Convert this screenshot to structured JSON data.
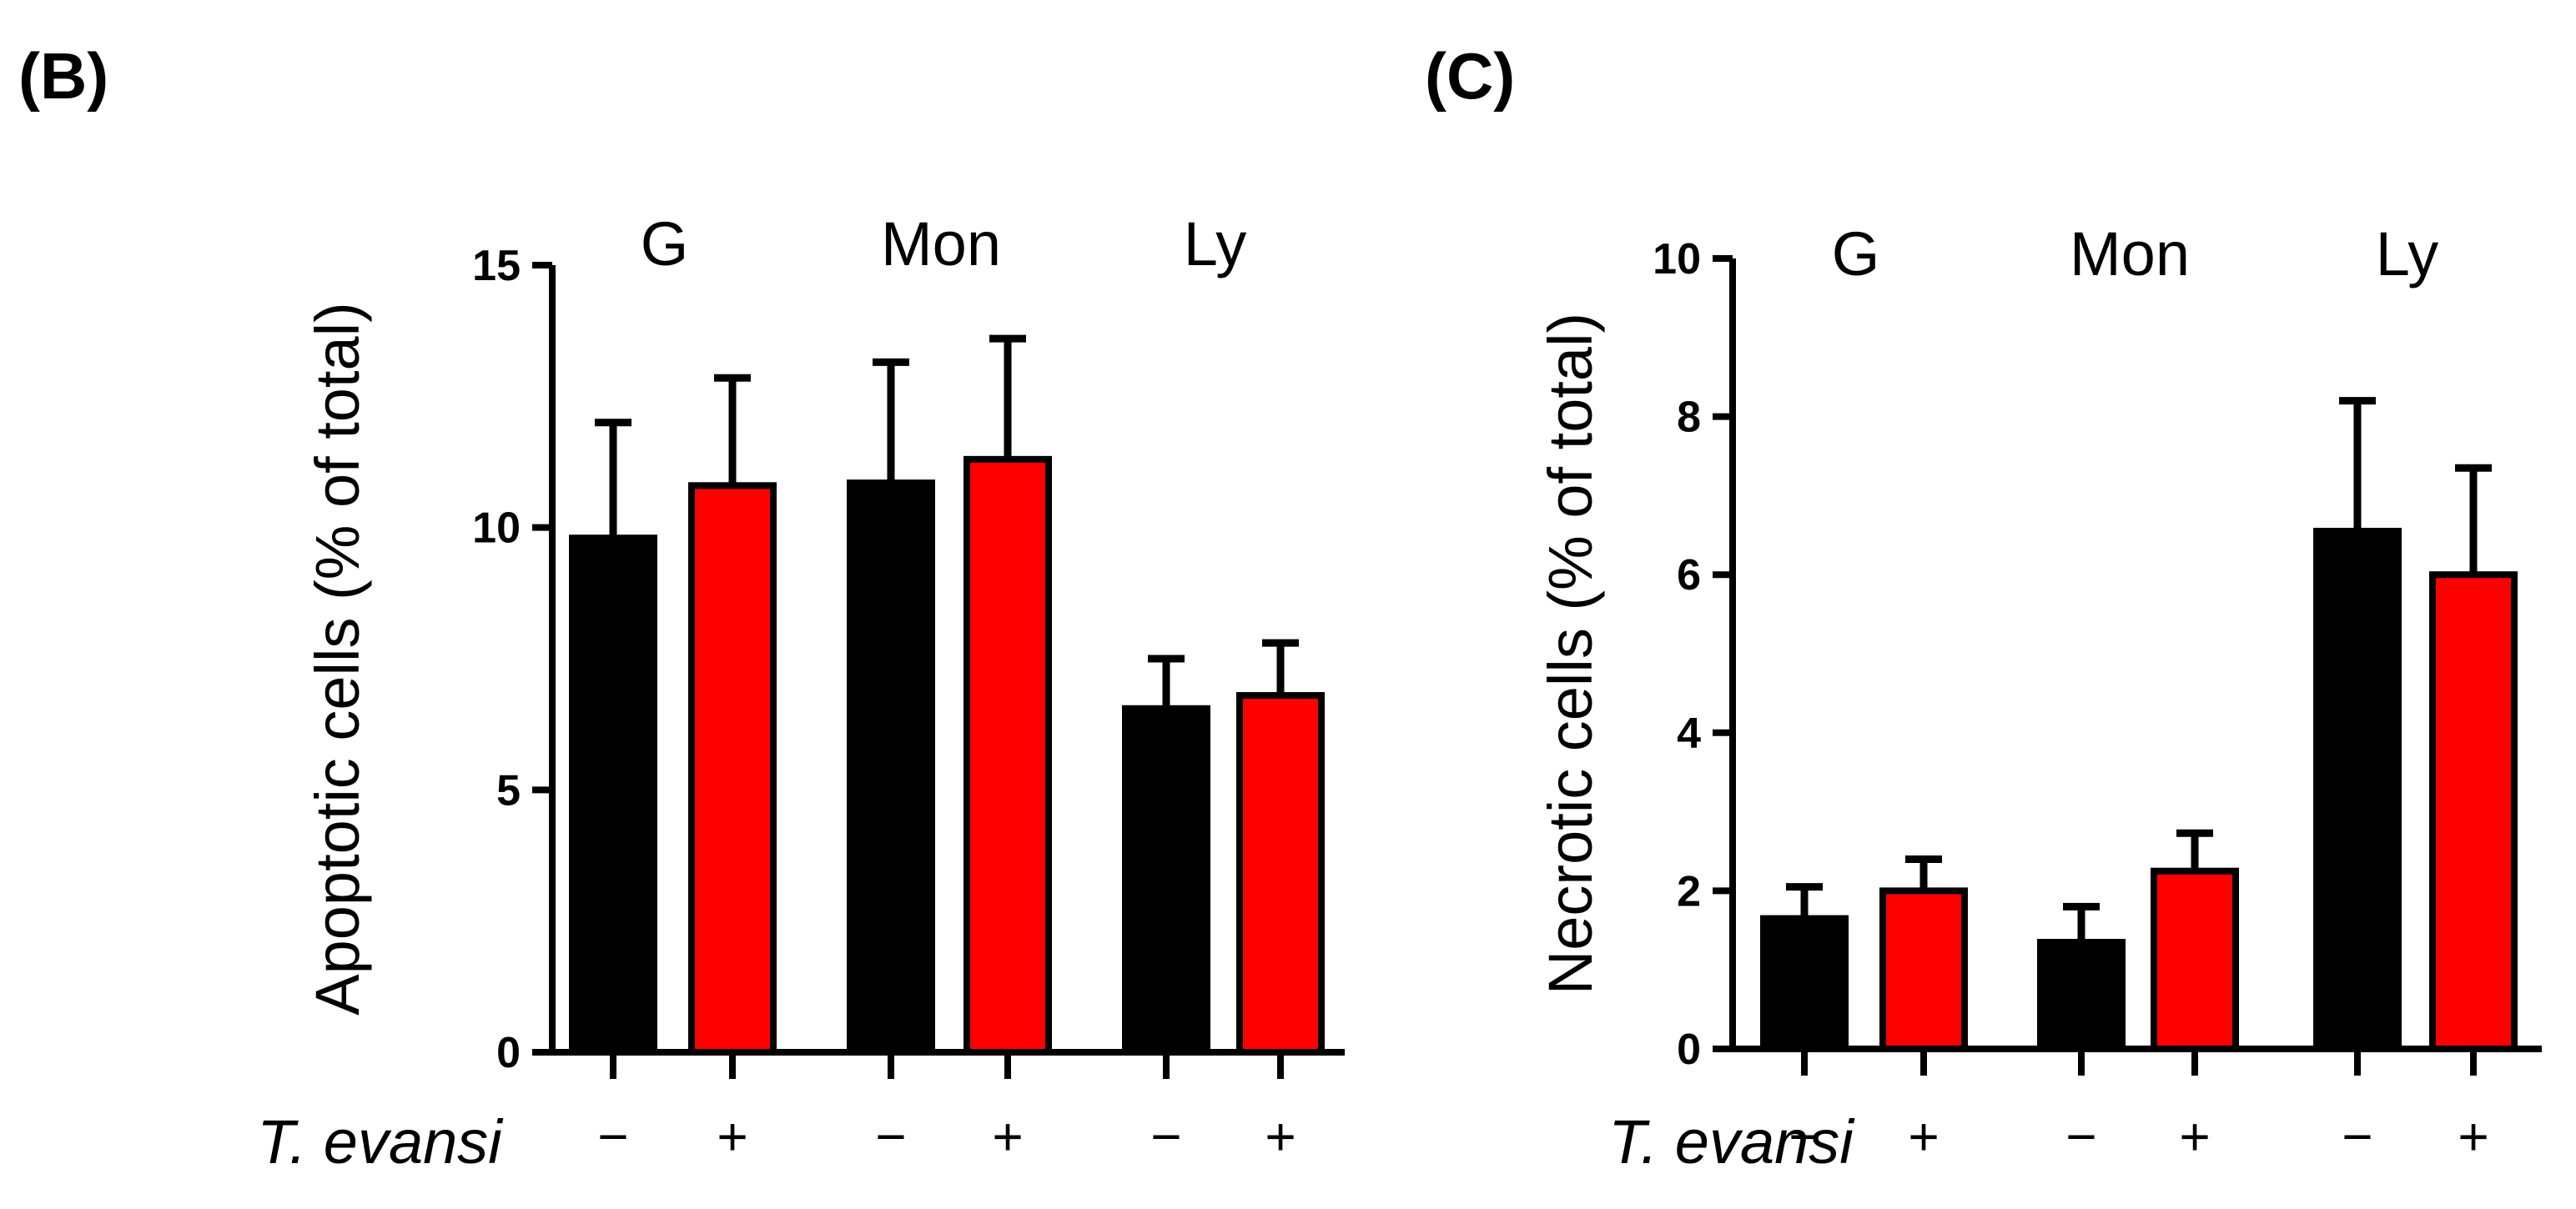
{
  "colors": {
    "control": "#000000",
    "infected": "#ff0000"
  },
  "chart_data": [
    {
      "type": "bar",
      "panel_label": "(B)",
      "ylabel": "Apoptotic cells (% of total)",
      "ylim": [
        0,
        15
      ],
      "yticks": [
        0,
        5,
        10,
        15
      ],
      "yticklabels": [
        "0",
        "5",
        "10",
        "15"
      ],
      "groups": [
        "G",
        "Mon",
        "Ly"
      ],
      "treatment_label": "T. evansi",
      "signs": [
        "−",
        "+"
      ],
      "series": [
        {
          "name": "T. evansi −",
          "values": [
            9.8,
            10.85,
            6.55
          ],
          "errors": [
            2.2,
            2.3,
            0.95
          ]
        },
        {
          "name": "T. evansi +",
          "values": [
            10.8,
            11.3,
            6.8
          ],
          "errors": [
            2.05,
            2.3,
            1.0
          ]
        }
      ]
    },
    {
      "type": "bar",
      "panel_label": "(C)",
      "ylabel": "Necrotic cells (% of total)",
      "ylim": [
        0,
        10
      ],
      "yticks": [
        0,
        2,
        4,
        6,
        8,
        10
      ],
      "yticklabels": [
        "0",
        "2",
        "4",
        "6",
        "8",
        "10"
      ],
      "groups": [
        "G",
        "Mon",
        "Ly"
      ],
      "treatment_label": "T. evansi",
      "signs": [
        "−",
        "+"
      ],
      "series": [
        {
          "name": "T. evansi −",
          "values": [
            1.65,
            1.35,
            6.55
          ],
          "errors": [
            0.4,
            0.45,
            1.65
          ]
        },
        {
          "name": "T. evansi +",
          "values": [
            2.0,
            2.25,
            6.0
          ],
          "errors": [
            0.4,
            0.48,
            1.35
          ]
        }
      ]
    }
  ]
}
